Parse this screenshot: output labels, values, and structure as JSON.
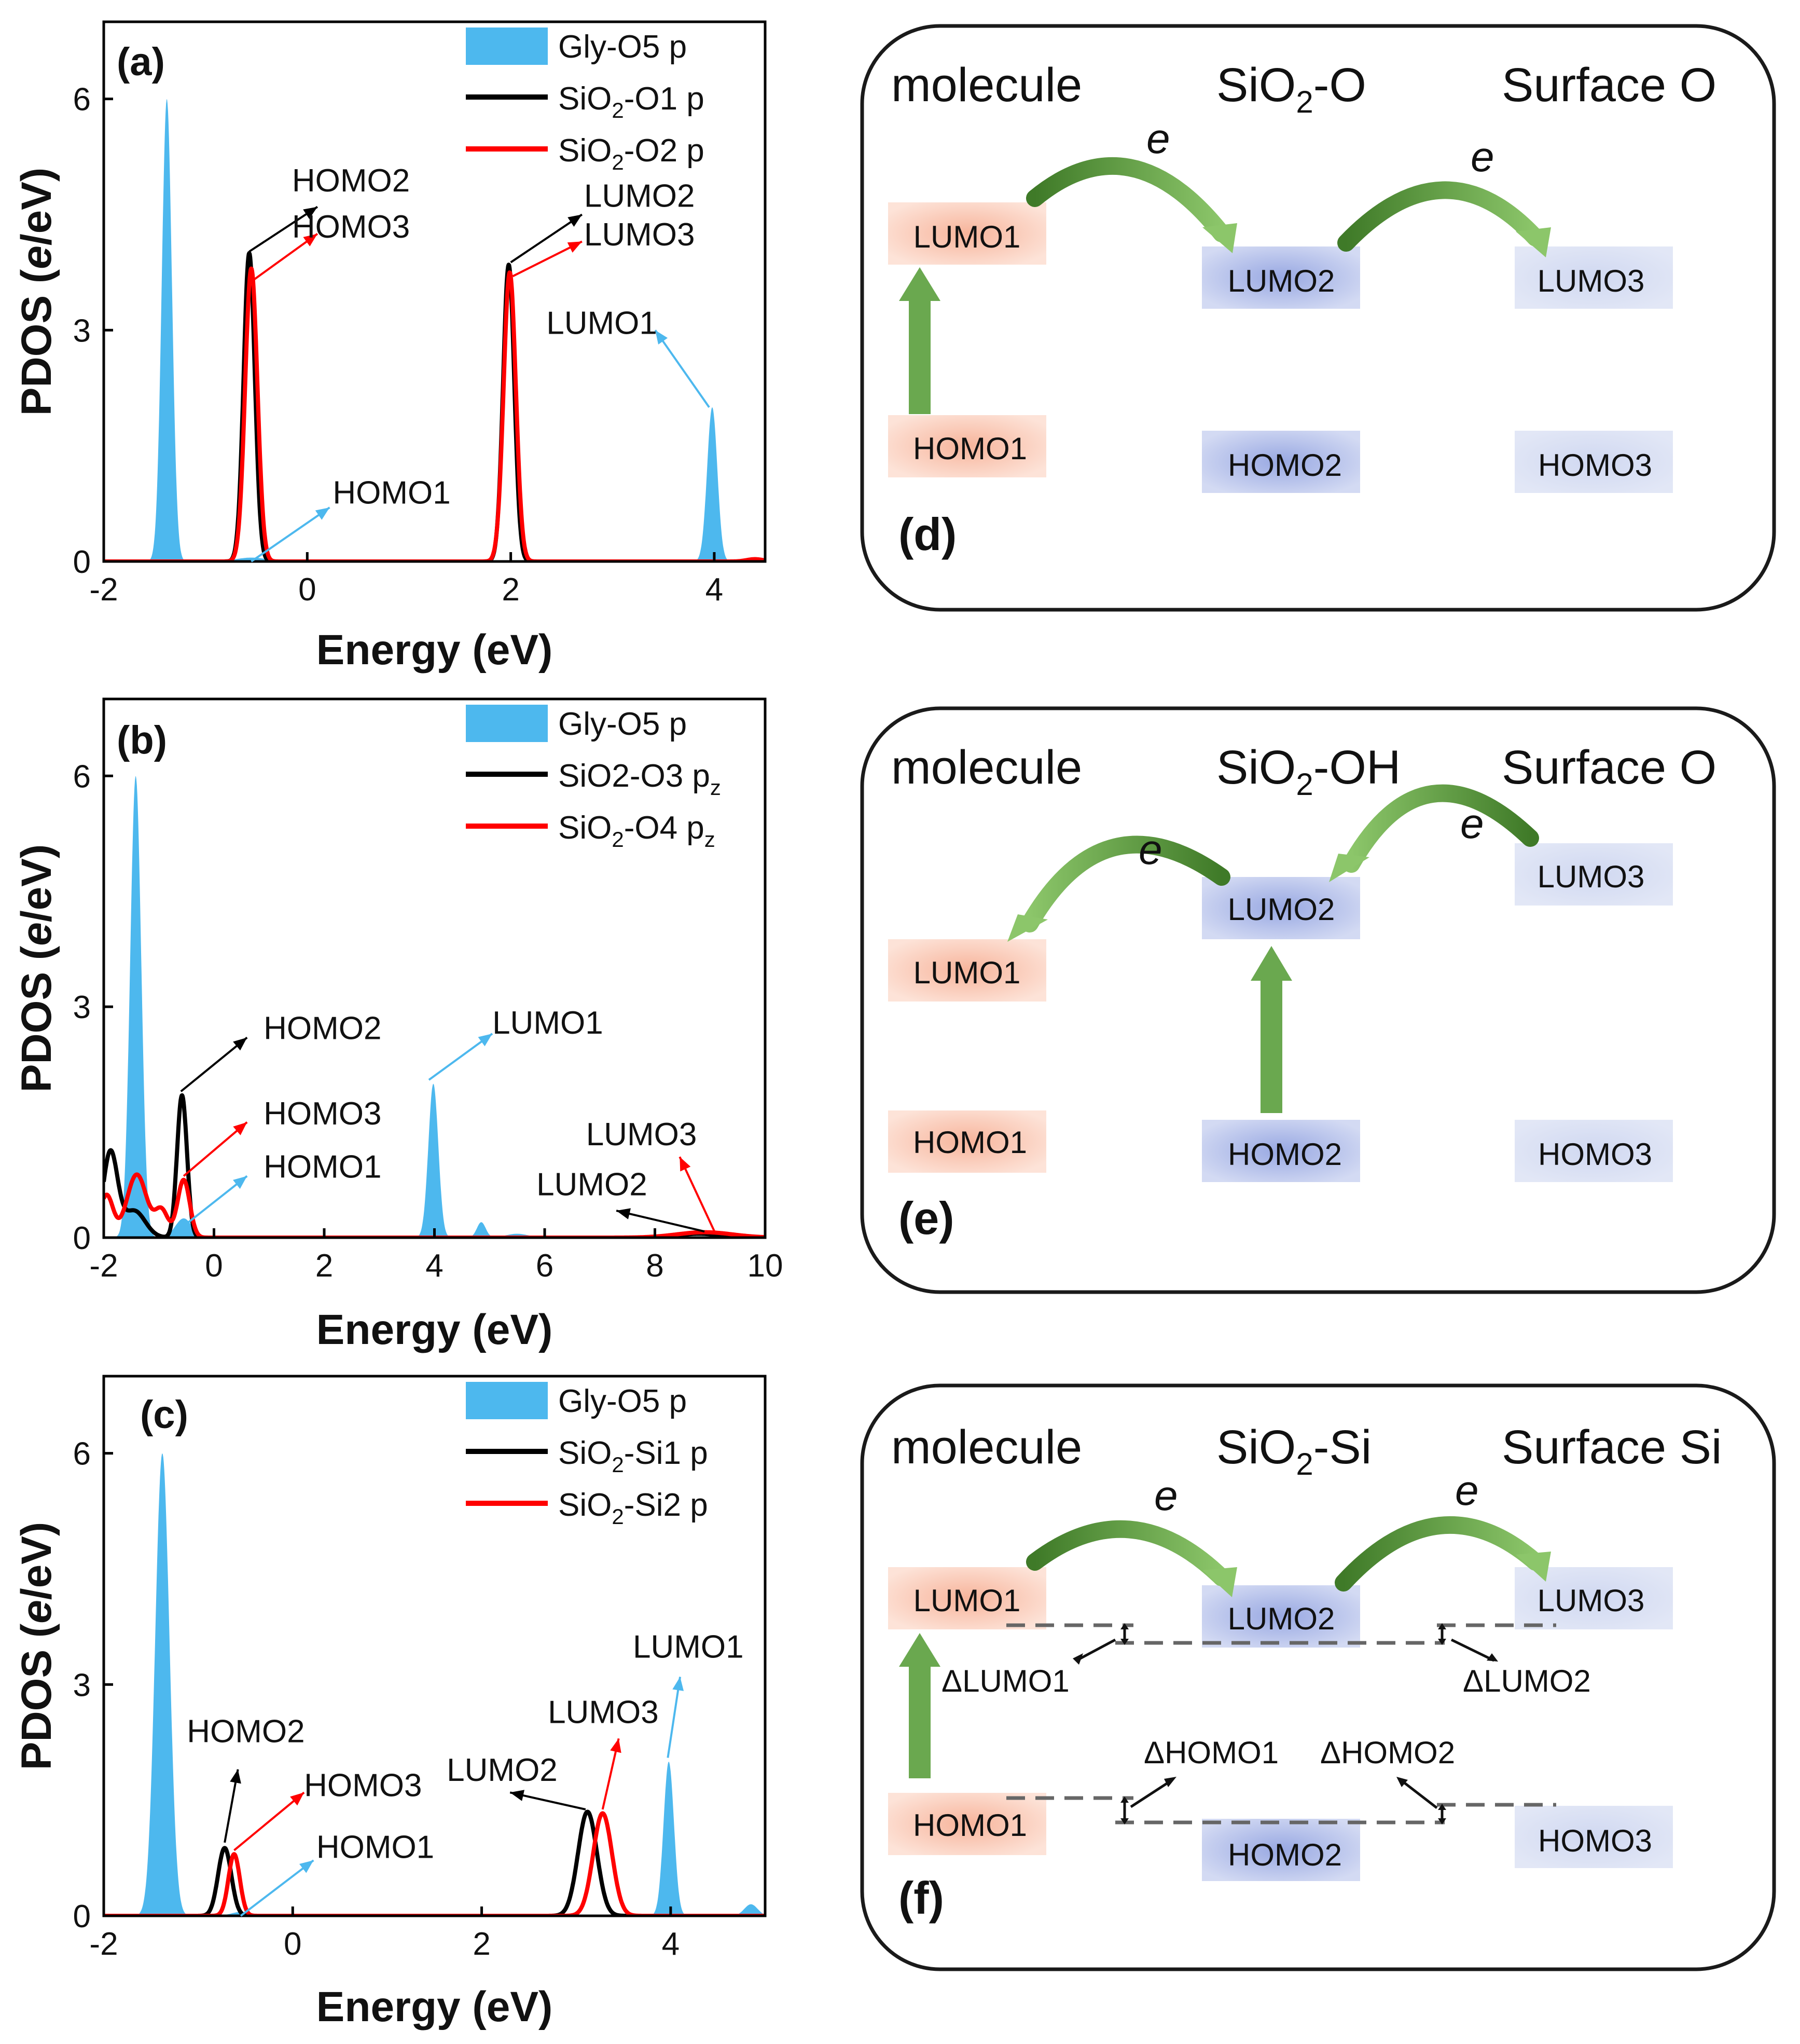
{
  "chart_data": [
    {
      "panel": "(a)",
      "type": "area",
      "xlabel": "Energy (eV)",
      "ylabel": "PDOS (e/eV)",
      "xlim": [
        -2,
        4.5
      ],
      "ylim": [
        0,
        7
      ],
      "xticks": [
        -2,
        0,
        2,
        4
      ],
      "yticks": [
        0,
        3,
        6
      ],
      "legend": [
        {
          "name": "Gly-O5 p",
          "kind": "fill"
        },
        {
          "name": "SiO",
          "sub": "2",
          "tail": "-O1 p",
          "kind": "line-black"
        },
        {
          "name": "SiO",
          "sub": "2",
          "tail": "-O2 p",
          "kind": "line-red"
        }
      ],
      "series": [
        {
          "name": "Gly-O5 p",
          "style": "fill",
          "color": "#4db8ee",
          "peaks": [
            [
              -1.38,
              6.0,
              0.05
            ],
            [
              -0.55,
              0.05,
              0.15
            ],
            [
              3.98,
              2.0,
              0.05
            ]
          ]
        },
        {
          "name": "SiO2-O1 p",
          "style": "line",
          "color": "#000000",
          "peaks": [
            [
              -0.57,
              4.0,
              0.055
            ],
            [
              1.98,
              3.85,
              0.055
            ]
          ]
        },
        {
          "name": "SiO2-O2 p",
          "style": "line",
          "color": "#ff0000",
          "peaks": [
            [
              -0.55,
              3.8,
              0.06
            ],
            [
              1.99,
              3.75,
              0.06
            ],
            [
              4.4,
              0.03,
              0.08
            ]
          ]
        }
      ],
      "annotations": [
        {
          "text": "HOMO2",
          "tx": -0.15,
          "ty": 4.8,
          "from": [
            -0.57,
            4.02
          ],
          "to": [
            0.1,
            4.6
          ],
          "color": "#000000"
        },
        {
          "text": "HOMO3",
          "tx": -0.15,
          "ty": 4.2,
          "from": [
            -0.53,
            3.65
          ],
          "to": [
            0.1,
            4.25
          ],
          "color": "#ff0000"
        },
        {
          "text": "LUMO2",
          "tx": 2.72,
          "ty": 4.6,
          "from": [
            2.0,
            3.88
          ],
          "to": [
            2.7,
            4.5
          ],
          "color": "#000000"
        },
        {
          "text": "LUMO3",
          "tx": 2.72,
          "ty": 4.1,
          "from": [
            2.02,
            3.7
          ],
          "to": [
            2.7,
            4.15
          ],
          "color": "#ff0000"
        },
        {
          "text": "LUMO1",
          "tx": 2.35,
          "ty": 2.95,
          "from": [
            3.95,
            2.0
          ],
          "to": [
            3.42,
            3.0
          ],
          "color": "#4db8ee"
        },
        {
          "text": "HOMO1",
          "tx": 0.25,
          "ty": 0.75,
          "from": [
            -0.55,
            0.0
          ],
          "to": [
            0.22,
            0.7
          ],
          "color": "#4db8ee"
        }
      ]
    },
    {
      "panel": "(b)",
      "type": "area",
      "xlabel": "Energy (eV)",
      "ylabel": "PDOS (e/eV)",
      "xlim": [
        -2,
        10
      ],
      "ylim": [
        0,
        7
      ],
      "xticks": [
        -2,
        0,
        2,
        4,
        6,
        8,
        10
      ],
      "yticks": [
        0,
        3,
        6
      ],
      "legend": [
        {
          "name": "Gly-O5 p",
          "kind": "fill"
        },
        {
          "name": "SiO2-O3 p",
          "sub": "z",
          "kind": "line-black-subz"
        },
        {
          "name": "SiO",
          "sub": "2",
          "tail": "-O4 p",
          "sub2": "z",
          "kind": "line-red"
        }
      ],
      "series": [
        {
          "name": "Gly-O5 p",
          "style": "fill",
          "color": "#4db8ee",
          "peaks": [
            [
              -1.42,
              6.0,
              0.1
            ],
            [
              -0.55,
              0.25,
              0.15
            ],
            [
              3.98,
              2.0,
              0.09
            ],
            [
              4.85,
              0.2,
              0.08
            ],
            [
              5.5,
              0.05,
              0.2
            ]
          ]
        },
        {
          "name": "SiO2-O3 pz",
          "style": "line",
          "color": "#000000",
          "peaks": [
            [
              -1.88,
              1.1,
              0.13
            ],
            [
              -1.45,
              0.35,
              0.2
            ],
            [
              -0.58,
              1.85,
              0.09
            ],
            [
              8.8,
              0.05,
              0.4
            ]
          ]
        },
        {
          "name": "SiO2-O4 pz",
          "style": "line",
          "color": "#ff0000",
          "peaks": [
            [
              -1.95,
              0.55,
              0.12
            ],
            [
              -1.4,
              0.82,
              0.18
            ],
            [
              -0.95,
              0.35,
              0.12
            ],
            [
              -0.55,
              0.75,
              0.11
            ],
            [
              8.9,
              0.07,
              0.5
            ]
          ]
        }
      ],
      "annotations": [
        {
          "text": "HOMO2",
          "tx": 0.9,
          "ty": 2.58,
          "from": [
            -0.6,
            1.9
          ],
          "to": [
            0.6,
            2.6
          ],
          "color": "#000000"
        },
        {
          "text": "HOMO3",
          "tx": 0.9,
          "ty": 1.47,
          "from": [
            -0.55,
            0.8
          ],
          "to": [
            0.6,
            1.5
          ],
          "color": "#ff0000"
        },
        {
          "text": "HOMO1",
          "tx": 0.9,
          "ty": 0.78,
          "from": [
            -0.55,
            0.15
          ],
          "to": [
            0.6,
            0.8
          ],
          "color": "#4db8ee"
        },
        {
          "text": "LUMO1",
          "tx": 5.05,
          "ty": 2.65,
          "from": [
            3.9,
            2.05
          ],
          "to": [
            5.05,
            2.65
          ],
          "color": "#4db8ee"
        },
        {
          "text": "LUMO3",
          "tx": 6.75,
          "ty": 1.2,
          "from": [
            9.1,
            0.05
          ],
          "to": [
            8.45,
            1.05
          ],
          "color": "#ff0000"
        },
        {
          "text": "LUMO2",
          "tx": 5.85,
          "ty": 0.55,
          "from": [
            8.9,
            0.08
          ],
          "to": [
            7.3,
            0.35
          ],
          "color": "#000000"
        }
      ]
    },
    {
      "panel": "(c)",
      "type": "area",
      "xlabel": "Energy (eV)",
      "ylabel": "PDOS (e/eV)",
      "xlim": [
        -2,
        5
      ],
      "ylim": [
        0,
        7
      ],
      "xticks": [
        -2,
        0,
        2,
        4
      ],
      "yticks": [
        0,
        3,
        6
      ],
      "legend": [
        {
          "name": "Gly-O5 p",
          "kind": "fill"
        },
        {
          "name": "SiO",
          "sub": "2",
          "tail": "-Si1 p",
          "kind": "line-black"
        },
        {
          "name": "SiO",
          "sub": "2",
          "tail": "-Si2 p",
          "kind": "line-red"
        }
      ],
      "series": [
        {
          "name": "Gly-O5 p",
          "style": "fill",
          "color": "#4db8ee",
          "peaks": [
            [
              -1.38,
              6.0,
              0.075
            ],
            [
              -0.55,
              0.05,
              0.1
            ],
            [
              3.98,
              2.0,
              0.055
            ],
            [
              4.85,
              0.15,
              0.07
            ]
          ]
        },
        {
          "name": "SiO2-Si1 p",
          "style": "line",
          "color": "#000000",
          "peaks": [
            [
              -0.72,
              0.88,
              0.07
            ],
            [
              3.12,
              1.35,
              0.1
            ]
          ]
        },
        {
          "name": "SiO2-Si2 p",
          "style": "line",
          "color": "#ff0000",
          "peaks": [
            [
              -0.62,
              0.8,
              0.06
            ],
            [
              3.28,
              1.33,
              0.1
            ]
          ]
        }
      ],
      "annotations": [
        {
          "text": "HOMO2",
          "tx": -1.12,
          "ty": 2.25,
          "from": [
            -0.72,
            0.95
          ],
          "to": [
            -0.58,
            1.9
          ],
          "color": "#000000"
        },
        {
          "text": "HOMO3",
          "tx": 0.12,
          "ty": 1.55,
          "from": [
            -0.62,
            0.85
          ],
          "to": [
            0.12,
            1.6
          ],
          "color": "#ff0000"
        },
        {
          "text": "HOMO1",
          "tx": 0.25,
          "ty": 0.75,
          "from": [
            -0.55,
            0.0
          ],
          "to": [
            0.22,
            0.72
          ],
          "color": "#4db8ee"
        },
        {
          "text": "LUMO2",
          "tx": 1.63,
          "ty": 1.75,
          "from": [
            3.1,
            1.38
          ],
          "to": [
            2.3,
            1.6
          ],
          "color": "#000000"
        },
        {
          "text": "LUMO3",
          "tx": 2.7,
          "ty": 2.5,
          "from": [
            3.28,
            1.38
          ],
          "to": [
            3.45,
            2.3
          ],
          "color": "#ff0000"
        },
        {
          "text": "LUMO1",
          "tx": 3.6,
          "ty": 3.35,
          "from": [
            3.97,
            2.05
          ],
          "to": [
            4.1,
            3.1
          ],
          "color": "#4db8ee"
        }
      ]
    }
  ],
  "diagrams": [
    {
      "panel": "(d)",
      "headers": {
        "molecule": "molecule",
        "middle_main": "SiO",
        "middle_sub": "2",
        "middle_tail": "-O",
        "right": "Surface O"
      },
      "boxes": {
        "lumo1": "LUMO1",
        "homo1": "HOMO1",
        "lumo2": "LUMO2",
        "homo2": "HOMO2",
        "lumo3": "LUMO3",
        "homo3": "HOMO3"
      },
      "electron": "e"
    },
    {
      "panel": "(e)",
      "headers": {
        "molecule": "molecule",
        "middle_main": "SiO",
        "middle_sub": "2",
        "middle_tail": "-OH",
        "right": "Surface O"
      },
      "boxes": {
        "lumo1": "LUMO1",
        "homo1": "HOMO1",
        "lumo2": "LUMO2",
        "homo2": "HOMO2",
        "lumo3": "LUMO3",
        "homo3": "HOMO3"
      },
      "electron": "e"
    },
    {
      "panel": "(f)",
      "headers": {
        "molecule": "molecule",
        "middle_main": "SiO",
        "middle_sub": "2",
        "middle_tail": "-Si",
        "right": "Surface Si"
      },
      "boxes": {
        "lumo1": "LUMO1",
        "homo1": "HOMO1",
        "lumo2": "LUMO2",
        "homo2": "HOMO2",
        "lumo3": "LUMO3",
        "homo3": "HOMO3"
      },
      "electron": "e",
      "deltas": {
        "dlumo1": "ΔLUMO1",
        "dlumo2": "ΔLUMO2",
        "dhomo1": "ΔHOMO1",
        "dhomo2": "ΔHOMO2"
      }
    }
  ],
  "colors": {
    "fill": "#4db8ee",
    "black": "#000000",
    "red": "#ff0000",
    "green": "#6aa84f",
    "lumo_mol": "#f6b39c",
    "lumo_mid": "#9fb0e4",
    "lumo_surf": "#d4dcf2"
  }
}
